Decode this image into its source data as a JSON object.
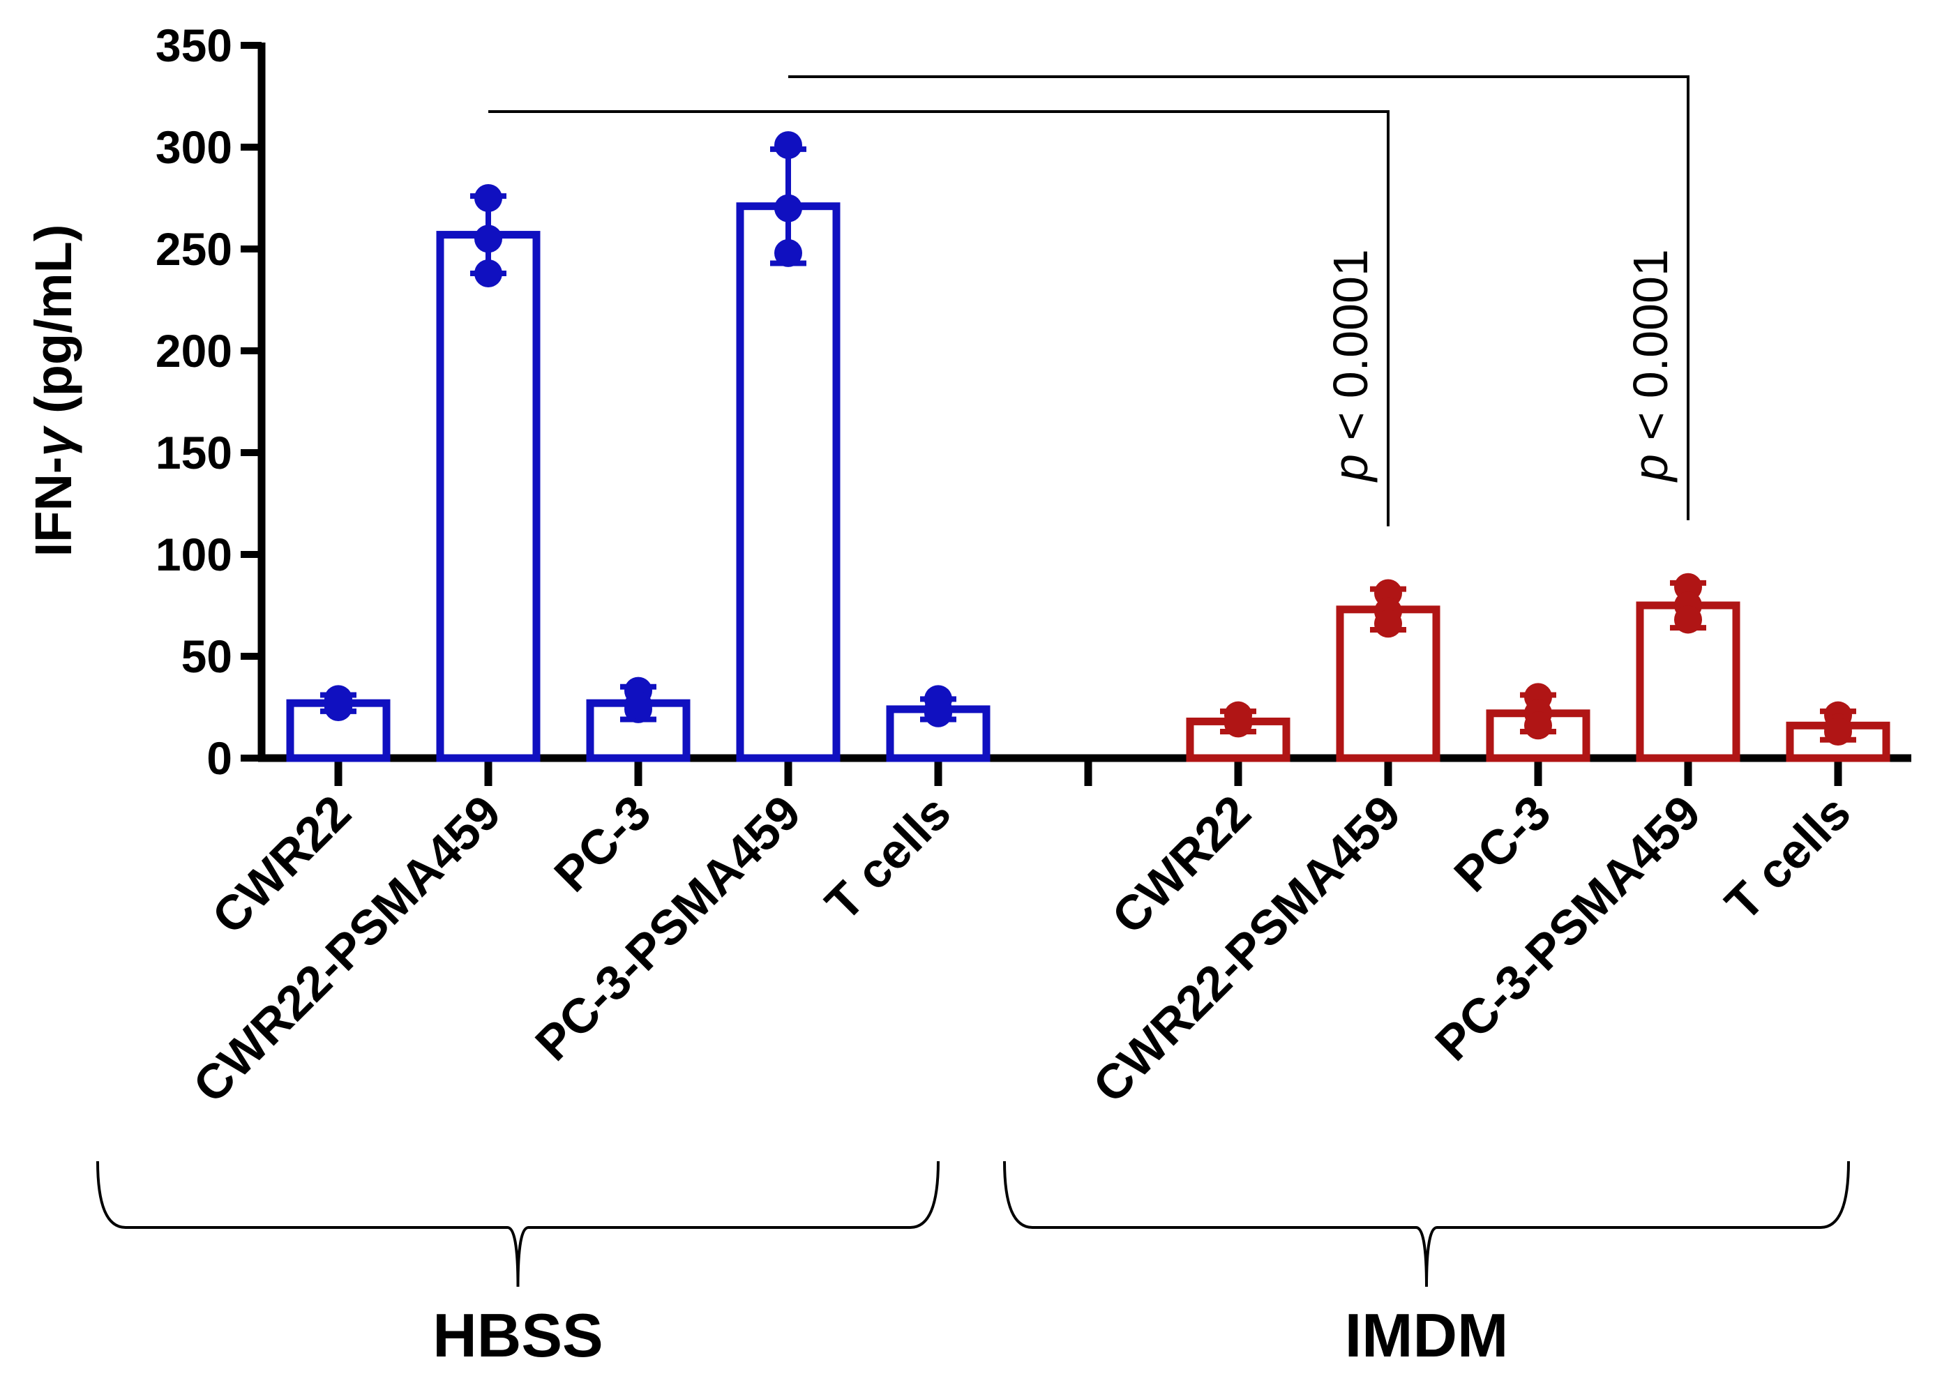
{
  "chart_data": {
    "type": "bar",
    "ylabel_prefix": "IFN-",
    "ylabel_greek": "γ",
    "ylabel_suffix": " (pg/mL)",
    "ylim": [
      0,
      350
    ],
    "yticks": [
      0,
      50,
      100,
      150,
      200,
      250,
      300,
      350
    ],
    "groups": [
      {
        "name": "HBSS",
        "color": "#1010c0",
        "categories": [
          "CWR22",
          "CWR22-PSMA459",
          "PC-3",
          "PC-3-PSMA459",
          "T cells"
        ],
        "means": [
          27,
          257,
          27,
          271,
          24
        ],
        "errors": [
          4,
          19,
          8,
          28,
          5
        ],
        "points": [
          [
            29,
            25,
            28
          ],
          [
            275,
            255,
            238
          ],
          [
            33,
            24,
            26
          ],
          [
            301,
            270,
            248
          ],
          [
            29,
            22,
            24
          ]
        ]
      },
      {
        "name": "IMDM",
        "color": "#b01515",
        "categories": [
          "CWR22",
          "CWR22-PSMA459",
          "PC-3",
          "PC-3-PSMA459",
          "T cells"
        ],
        "means": [
          18,
          73,
          22,
          75,
          16
        ],
        "errors": [
          5,
          10,
          9,
          11,
          7
        ],
        "points": [
          [
            21,
            17,
            18
          ],
          [
            81,
            72,
            66
          ],
          [
            30,
            22,
            16
          ],
          [
            84,
            75,
            68
          ],
          [
            21,
            15,
            13
          ]
        ]
      }
    ],
    "comparisons": [
      {
        "from": "HBSS.CWR22-PSMA459",
        "to": "IMDM.CWR22-PSMA459",
        "p_italic": "p",
        "p_rest": " < 0.0001"
      },
      {
        "from": "HBSS.PC-3-PSMA459",
        "to": "IMDM.PC-3-PSMA459",
        "p_italic": "p",
        "p_rest": " < 0.0001"
      }
    ]
  }
}
